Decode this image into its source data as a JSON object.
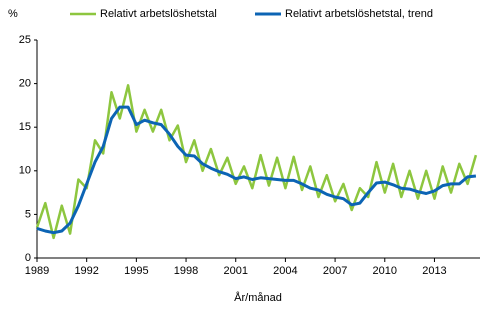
{
  "chart_data": {
    "type": "line",
    "y_label": "%",
    "x_label": "År/månad",
    "x": [
      1989.0,
      1989.5,
      1990.0,
      1990.5,
      1991.0,
      1991.5,
      1992.0,
      1992.5,
      1993.0,
      1993.5,
      1994.0,
      1994.5,
      1995.0,
      1995.5,
      1996.0,
      1996.5,
      1997.0,
      1997.5,
      1998.0,
      1998.5,
      1999.0,
      1999.5,
      2000.0,
      2000.5,
      2001.0,
      2001.5,
      2002.0,
      2002.5,
      2003.0,
      2003.5,
      2004.0,
      2004.5,
      2005.0,
      2005.5,
      2006.0,
      2006.5,
      2007.0,
      2007.5,
      2008.0,
      2008.5,
      2009.0,
      2009.5,
      2010.0,
      2010.5,
      2011.0,
      2011.5,
      2012.0,
      2012.5,
      2013.0,
      2013.5,
      2014.0,
      2014.5,
      2015.0,
      2015.5
    ],
    "series": [
      {
        "name": "Relativt arbetslöshetstal",
        "color": "#8dc63f",
        "width": 2.5,
        "values": [
          3.5,
          6.3,
          2.3,
          6.0,
          2.8,
          9.0,
          8.0,
          13.5,
          12.0,
          19.0,
          16.0,
          19.8,
          14.5,
          17.0,
          14.5,
          17.0,
          13.5,
          15.2,
          11.0,
          13.5,
          10.0,
          12.5,
          9.5,
          11.5,
          8.5,
          10.5,
          8.0,
          11.8,
          8.3,
          11.5,
          8.0,
          11.6,
          7.8,
          10.5,
          7.0,
          9.5,
          6.5,
          8.5,
          5.5,
          8.0,
          7.0,
          11.0,
          7.5,
          10.8,
          7.0,
          10.0,
          6.8,
          10.0,
          6.8,
          10.5,
          7.5,
          10.8,
          8.5,
          11.8
        ]
      },
      {
        "name": "Relativt arbetslöshetstal, trend",
        "color": "#0c64b4",
        "width": 3,
        "values": [
          3.4,
          3.1,
          2.9,
          3.1,
          4.0,
          6.0,
          8.5,
          11.0,
          12.8,
          16.0,
          17.3,
          17.3,
          15.3,
          15.8,
          15.5,
          15.3,
          14.2,
          12.8,
          11.8,
          11.7,
          10.8,
          10.3,
          9.9,
          9.6,
          9.1,
          9.3,
          9.0,
          9.2,
          9.1,
          9.0,
          8.9,
          8.9,
          8.5,
          8.0,
          7.8,
          7.3,
          7.0,
          6.8,
          6.1,
          6.3,
          7.5,
          8.6,
          8.7,
          8.4,
          8.0,
          7.9,
          7.6,
          7.4,
          7.7,
          8.3,
          8.5,
          8.5,
          9.3,
          9.4
        ]
      }
    ],
    "xlim": [
      1989,
      2015.75
    ],
    "xticks": [
      1989,
      1992,
      1995,
      1998,
      2001,
      2004,
      2007,
      2010,
      2013
    ],
    "ylim": [
      0,
      25
    ],
    "yticks": [
      0,
      5,
      10,
      15,
      20,
      25
    ]
  }
}
